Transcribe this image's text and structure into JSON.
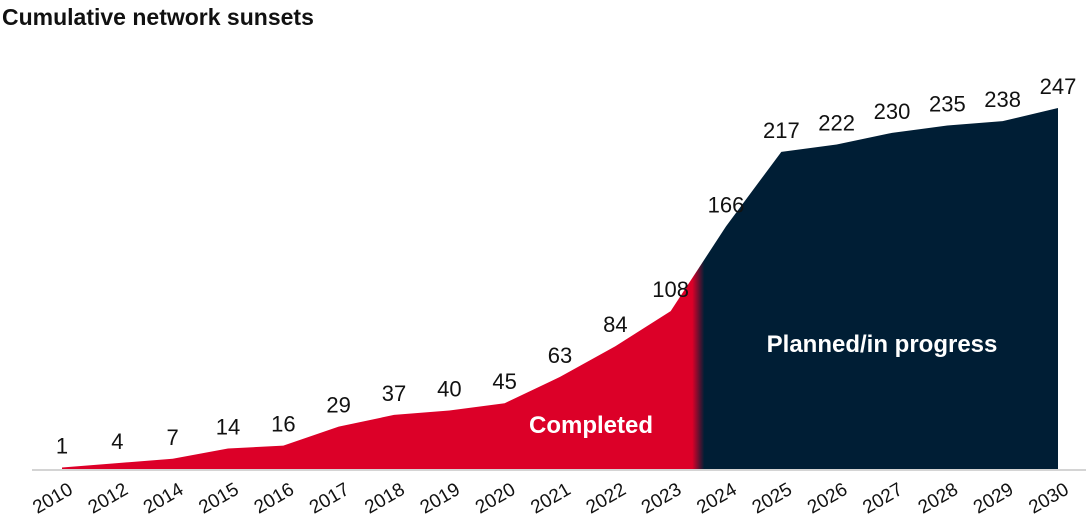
{
  "chart_data": {
    "type": "area",
    "title": "Cumulative network sunsets",
    "categories": [
      "2010",
      "2012",
      "2014",
      "2015",
      "2016",
      "2017",
      "2018",
      "2019",
      "2020",
      "2021",
      "2022",
      "2023",
      "2024",
      "2025",
      "2026",
      "2027",
      "2028",
      "2029",
      "2030"
    ],
    "values": [
      1,
      4,
      7,
      14,
      16,
      29,
      37,
      40,
      45,
      63,
      84,
      108,
      166,
      217,
      222,
      230,
      235,
      238,
      247
    ],
    "ylim": [
      0,
      247
    ],
    "xlabel": "",
    "ylabel": "",
    "grid": false,
    "annotations": [
      {
        "text": "Completed",
        "color": "#DC0028"
      },
      {
        "text": "Planned/in progress",
        "color": "#001E35"
      }
    ],
    "split_after_index": 11.5
  }
}
